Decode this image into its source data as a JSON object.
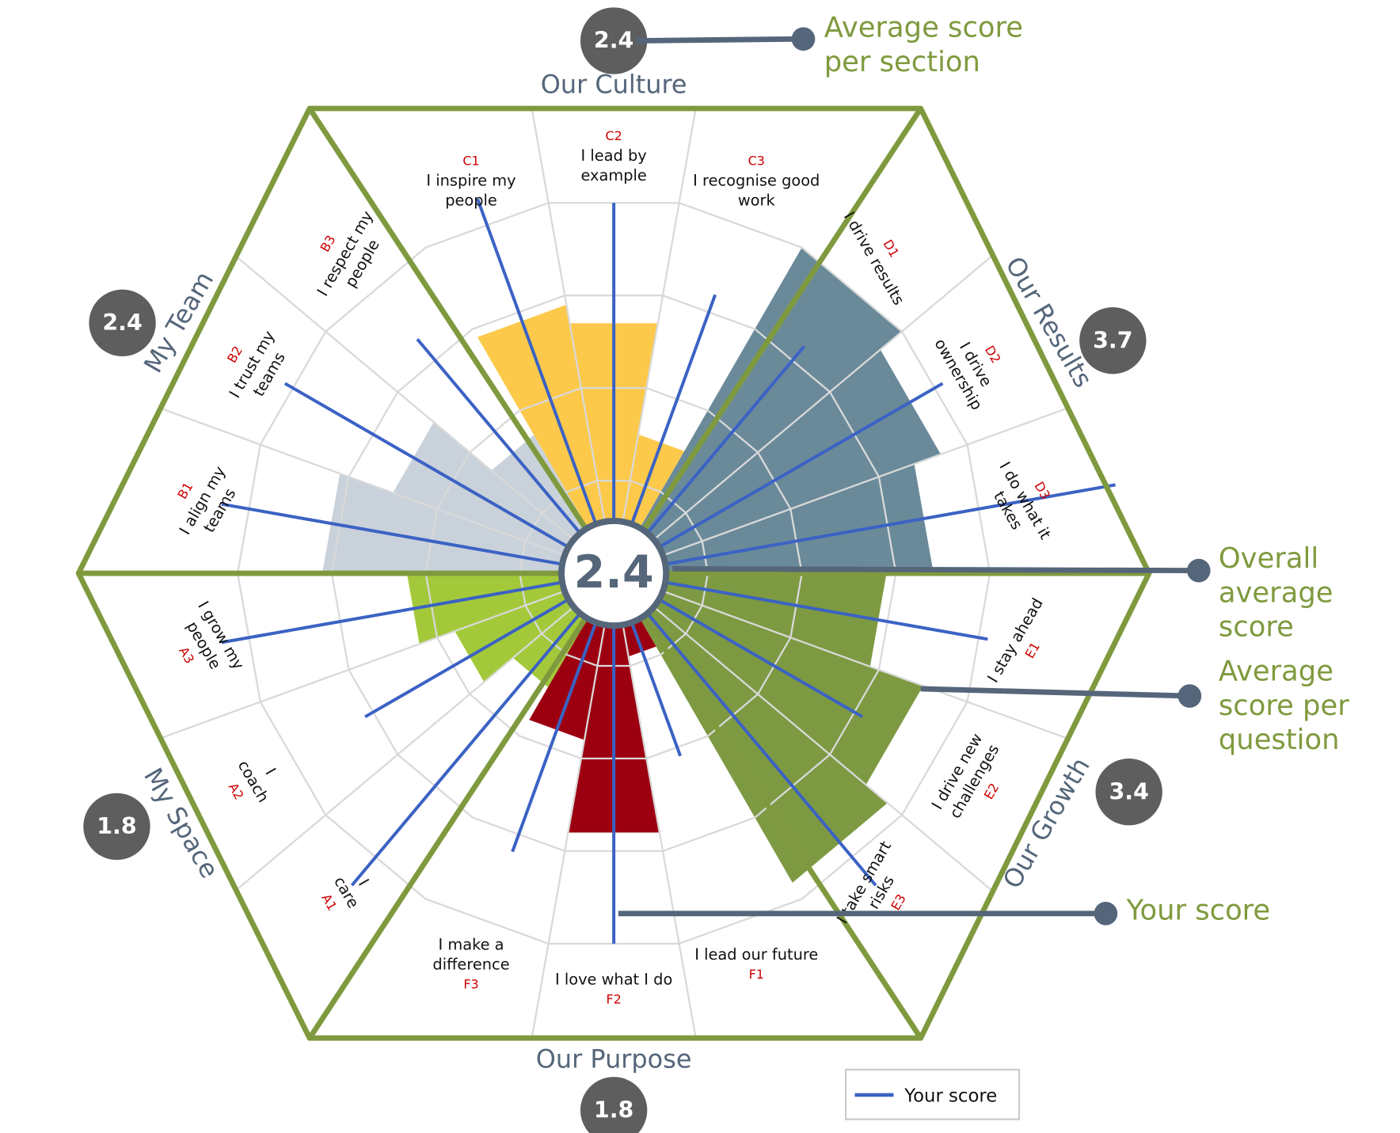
{
  "chart_data": {
    "type": "radial",
    "overall": 2.4,
    "rlim": [
      0,
      5
    ],
    "rticks": [
      1,
      2,
      3,
      4
    ],
    "score_color": "#3b62c4",
    "legend": "Your score",
    "sections": [
      {
        "name": "My Space",
        "average": 1.8,
        "color": "#a3c93a",
        "questions": [
          {
            "code": "A1",
            "label": [
              "I",
              "care"
            ],
            "average": 1.4,
            "your_score": 4.4
          },
          {
            "code": "A2",
            "label": [
              "I",
              "coach"
            ],
            "average": 1.8,
            "your_score": 3.1
          },
          {
            "code": "A3",
            "label": [
              "I grow my",
              "people"
            ],
            "average": 2.2,
            "your_score": 4.3
          }
        ]
      },
      {
        "name": "My Team",
        "average": 2.4,
        "color": "#c9d1db",
        "questions": [
          {
            "code": "B1",
            "label": [
              "I align my",
              "teams"
            ],
            "average": 3.1,
            "your_score": 4.3
          },
          {
            "code": "B2",
            "label": [
              "I trust my",
              "teams"
            ],
            "average": 2.5,
            "your_score": 4.1
          },
          {
            "code": "B3",
            "label": [
              "I respect my",
              "people"
            ],
            "average": 1.7,
            "your_score": 3.3
          }
        ]
      },
      {
        "name": "Our Culture",
        "average": 2.4,
        "color": "#fcc94b",
        "questions": [
          {
            "code": "C1",
            "label": [
              "I inspire my",
              "people"
            ],
            "average": 2.9,
            "your_score": 4.3
          },
          {
            "code": "C2",
            "label": [
              "I lead by",
              "example"
            ],
            "average": 2.7,
            "your_score": 4.0
          },
          {
            "code": "C3",
            "label": [
              "I recognise good",
              "work"
            ],
            "average": 1.5,
            "your_score": 3.2
          }
        ]
      },
      {
        "name": "Our Results",
        "average": 3.7,
        "color": "#6a8a9a",
        "questions": [
          {
            "code": "D1",
            "label": [
              "I drive results"
            ],
            "average": 4.0,
            "your_score": 3.2
          },
          {
            "code": "D2",
            "label": [
              "I drive",
              "ownership"
            ],
            "average": 3.7,
            "your_score": 4.1
          },
          {
            "code": "D3",
            "label": [
              "I do what it",
              "takes"
            ],
            "average": 3.4,
            "your_score": 5.5
          }
        ]
      },
      {
        "name": "Our Growth",
        "average": 3.4,
        "color": "#7d9a42",
        "questions": [
          {
            "code": "E1",
            "label": [
              "I stay ahead"
            ],
            "average": 2.9,
            "your_score": 4.1
          },
          {
            "code": "E2",
            "label": [
              "I drive new",
              "challenges"
            ],
            "average": 3.5,
            "your_score": 3.1
          },
          {
            "code": "E3",
            "label": [
              "I take smart",
              "risks"
            ],
            "average": 3.8,
            "your_score": 4.4
          }
        ]
      },
      {
        "name": "Our Purpose",
        "average": 1.8,
        "color": "#9c0010",
        "questions": [
          {
            "code": "F1",
            "label": [
              "I lead our future"
            ],
            "average": 0.9,
            "your_score": 2.1
          },
          {
            "code": "F2",
            "label": [
              "I love what I do"
            ],
            "average": 2.8,
            "your_score": 4.0
          },
          {
            "code": "F3",
            "label": [
              "I make a",
              "difference"
            ],
            "average": 1.8,
            "your_score": 3.2
          }
        ]
      }
    ],
    "annotations": [
      {
        "text": [
          "Average score",
          "per section"
        ]
      },
      {
        "text": [
          "Overall",
          "average",
          "score"
        ]
      },
      {
        "text": [
          "Average",
          "score per",
          "question"
        ]
      },
      {
        "text": [
          "Your score"
        ]
      }
    ]
  }
}
